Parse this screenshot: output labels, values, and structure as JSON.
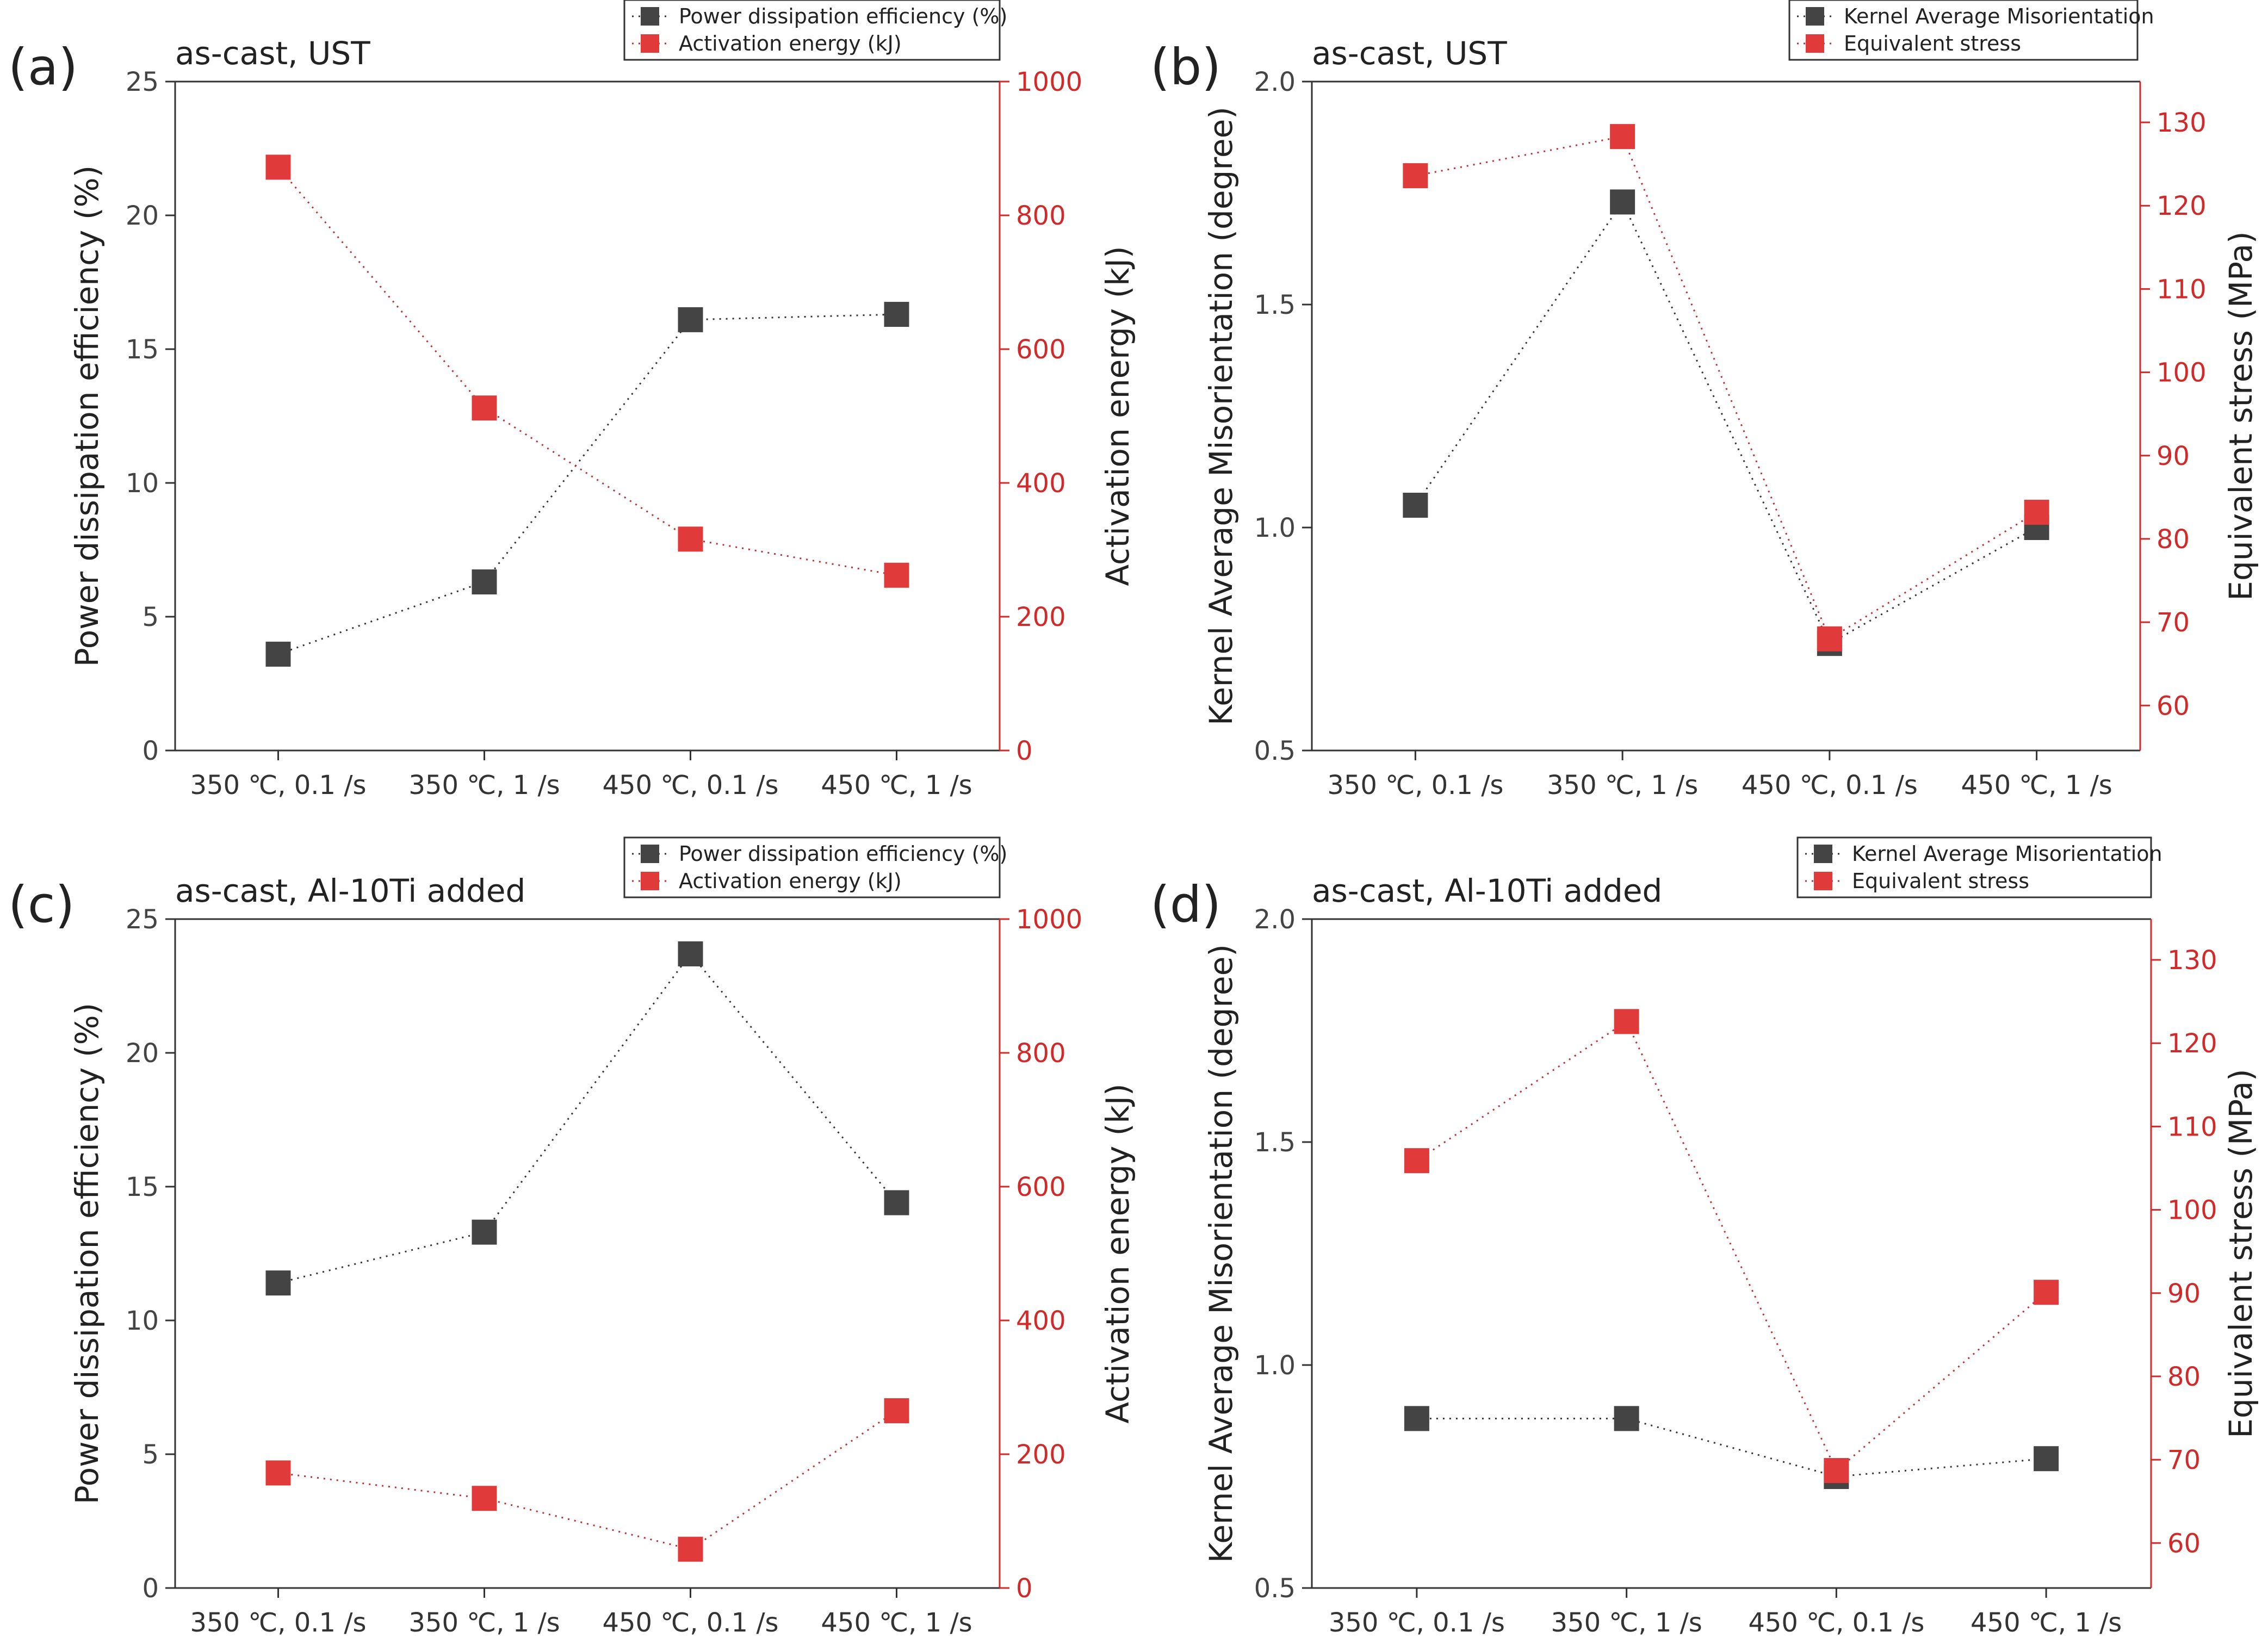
{
  "colors": {
    "left_series": "#444444",
    "right_series": "#e03a3a",
    "right_axis": "#d02a2a",
    "axis": "#333333"
  },
  "chart_data": [
    {
      "panel": "(a)",
      "type": "line",
      "title": "as-cast, UST",
      "categories": [
        "350 ℃, 0.1 /s",
        "350 ℃, 1 /s",
        "450 ℃, 0.1 /s",
        "450 ℃, 1 /s"
      ],
      "ylabel": "Power dissipation efficiency (%)",
      "y2label": "Activation energy (kJ)",
      "ylim": [
        0,
        25
      ],
      "yticks": [
        0,
        5,
        10,
        15,
        20,
        25
      ],
      "y2lim": [
        0,
        1000
      ],
      "y2ticks": [
        0,
        200,
        400,
        600,
        800,
        1000
      ],
      "legend_position": "top-right",
      "series": [
        {
          "name": "Power dissipation efficiency (%)",
          "axis": "left",
          "values": [
            3.6,
            6.3,
            16.1,
            16.3
          ]
        },
        {
          "name": "Activation energy (kJ)",
          "axis": "right",
          "values": [
            872,
            512,
            316,
            262
          ]
        }
      ]
    },
    {
      "panel": "(b)",
      "type": "line",
      "title": "as-cast, UST",
      "categories": [
        "350 ℃, 0.1 /s",
        "350 ℃, 1 /s",
        "450 ℃, 0.1 /s",
        "450 ℃, 1 /s"
      ],
      "ylabel": "Kernel Average Misorientation (degree)",
      "y2label": "Equivalent stress (MPa)",
      "ylim": [
        0.5,
        2.0
      ],
      "yticks": [
        0.5,
        1.0,
        1.5,
        2.0
      ],
      "y2lim": [
        54.6,
        134.9
      ],
      "y2ticks": [
        60,
        70,
        80,
        90,
        100,
        110,
        120,
        130
      ],
      "legend_position": "top-right",
      "series": [
        {
          "name": "Kernel Average Misorientation",
          "axis": "left",
          "values": [
            1.05,
            1.73,
            0.74,
            1.0
          ]
        },
        {
          "name": "Equivalent stress",
          "axis": "right",
          "values": [
            123.6,
            128.3,
            68.0,
            83.2
          ]
        }
      ]
    },
    {
      "panel": "(c)",
      "type": "line",
      "title": "as-cast, Al-10Ti added",
      "categories": [
        "350 ℃, 0.1 /s",
        "350 ℃, 1 /s",
        "450 ℃, 0.1 /s",
        "450 ℃, 1 /s"
      ],
      "ylabel": "Power dissipation efficiency (%)",
      "y2label": "Activation energy (kJ)",
      "ylim": [
        0,
        25
      ],
      "yticks": [
        0,
        5,
        10,
        15,
        20,
        25
      ],
      "y2lim": [
        0,
        1000
      ],
      "y2ticks": [
        0,
        200,
        400,
        600,
        800,
        1000
      ],
      "legend_position": "top-right",
      "series": [
        {
          "name": "Power dissipation efficiency (%)",
          "axis": "left",
          "values": [
            11.4,
            13.3,
            23.7,
            14.4
          ]
        },
        {
          "name": "Activation energy (kJ)",
          "axis": "right",
          "values": [
            172,
            134,
            58,
            265
          ]
        }
      ]
    },
    {
      "panel": "(d)",
      "type": "line",
      "title": "as-cast, Al-10Ti added",
      "categories": [
        "350 ℃, 0.1 /s",
        "350 ℃, 1 /s",
        "450 ℃, 0.1 /s",
        "450 ℃, 1 /s"
      ],
      "ylabel": "Kernel Average Misorientation (degree)",
      "y2label": "Equivalent stress (MPa)",
      "ylim": [
        0.5,
        2.0
      ],
      "yticks": [
        0.5,
        1.0,
        1.5,
        2.0
      ],
      "y2lim": [
        54.6,
        134.9
      ],
      "y2ticks": [
        60,
        70,
        80,
        90,
        100,
        110,
        120,
        130
      ],
      "legend_position": "top-right",
      "series": [
        {
          "name": "Kernel Average Misorientation",
          "axis": "left",
          "values": [
            0.88,
            0.88,
            0.75,
            0.79
          ]
        },
        {
          "name": "Equivalent stress",
          "axis": "right",
          "values": [
            105.9,
            122.6,
            68.7,
            90.1
          ]
        }
      ]
    }
  ]
}
